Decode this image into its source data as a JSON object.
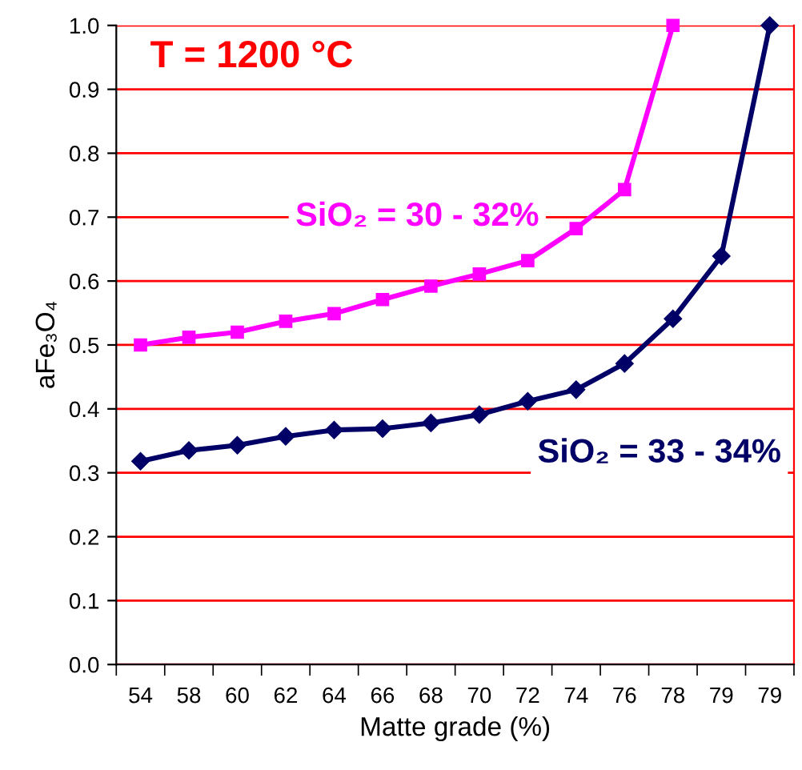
{
  "chart_data": {
    "type": "line",
    "categories": [
      "54",
      "58",
      "60",
      "62",
      "64",
      "66",
      "68",
      "70",
      "72",
      "74",
      "76",
      "78",
      "79",
      "79"
    ],
    "xlabel": "Matte grade (%)",
    "ylabel": "aFe₃O₄",
    "ylim": [
      0.0,
      1.0
    ],
    "yticks": [
      {
        "value": 0.0,
        "label": "0.0"
      },
      0.1,
      0.2,
      0.3,
      0.4,
      0.5,
      0.6,
      0.7,
      0.8,
      0.9,
      {
        "value": 1.0,
        "label": "1.0"
      }
    ],
    "grid": "y",
    "legend": false,
    "annotations": [
      "T = 1200 °C"
    ],
    "series": [
      {
        "name": "SiO₂ = 30 - 32%",
        "color": "#ff00ff",
        "marker": "square",
        "values": [
          0.5,
          0.512,
          0.52,
          0.537,
          0.549,
          0.571,
          0.592,
          0.611,
          0.632,
          0.682,
          0.743,
          1.0,
          null,
          null
        ]
      },
      {
        "name": "SiO₂ = 33 - 34%",
        "color": "#000066",
        "marker": "diamond",
        "values": [
          0.318,
          0.335,
          0.343,
          0.357,
          0.367,
          0.369,
          0.378,
          0.391,
          0.412,
          0.43,
          0.471,
          0.541,
          0.639,
          1.0
        ]
      }
    ]
  }
}
